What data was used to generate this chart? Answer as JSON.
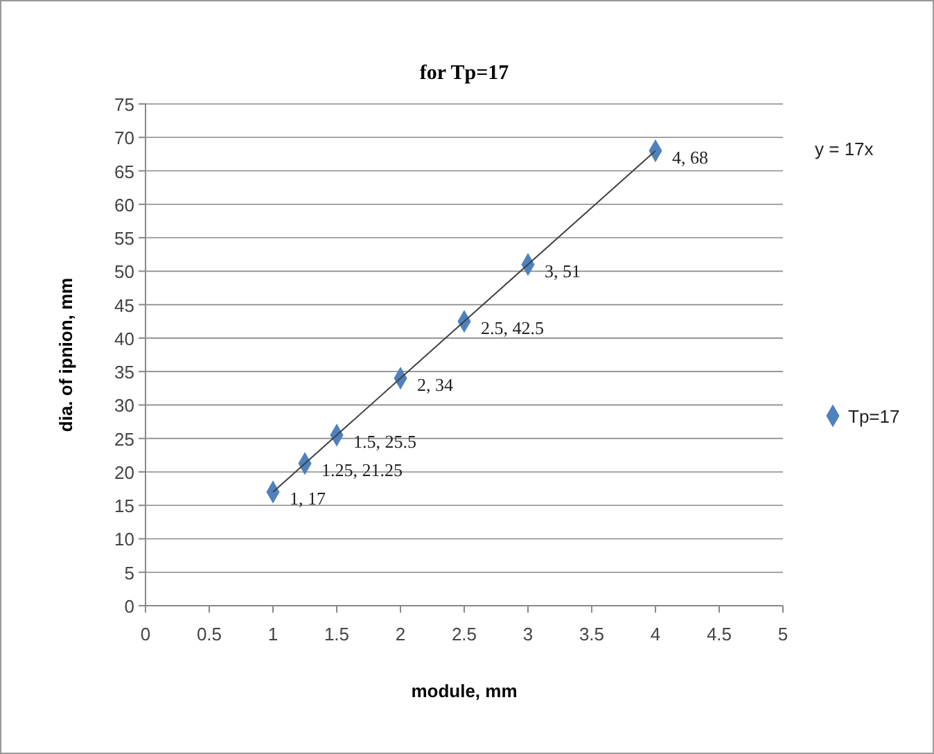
{
  "chart_data": {
    "type": "scatter",
    "title": "for Tp=17",
    "xlabel": "module, mm",
    "ylabel": "dia. of ipnion, mm",
    "xlim": [
      0,
      5
    ],
    "xticks": [
      0,
      0.5,
      1,
      1.5,
      2,
      2.5,
      3,
      3.5,
      4,
      4.5,
      5
    ],
    "ylim": [
      0,
      75
    ],
    "yticks": [
      0,
      5,
      10,
      15,
      20,
      25,
      30,
      35,
      40,
      45,
      50,
      55,
      60,
      65,
      70,
      75
    ],
    "grid": "y",
    "legend": "right",
    "marker": "diamond",
    "annotations": [
      "y = 17x"
    ],
    "series": [
      {
        "name": "Tp=17",
        "color": "#4f81bd",
        "x": [
          1,
          1.25,
          1.5,
          2,
          2.5,
          3,
          4
        ],
        "values": [
          17,
          21.25,
          25.5,
          34,
          42.5,
          51,
          68
        ],
        "value_labels": [
          "1, 17",
          "1.25, 21.25",
          "1.5, 25.5",
          "2, 34",
          "2.5, 42.5",
          "3, 51",
          "4, 68"
        ]
      },
      {
        "type": "line",
        "color": "#404040",
        "x": [
          1,
          4
        ],
        "values": [
          17,
          68
        ],
        "marker": "none",
        "line_style": "solid"
      }
    ]
  }
}
